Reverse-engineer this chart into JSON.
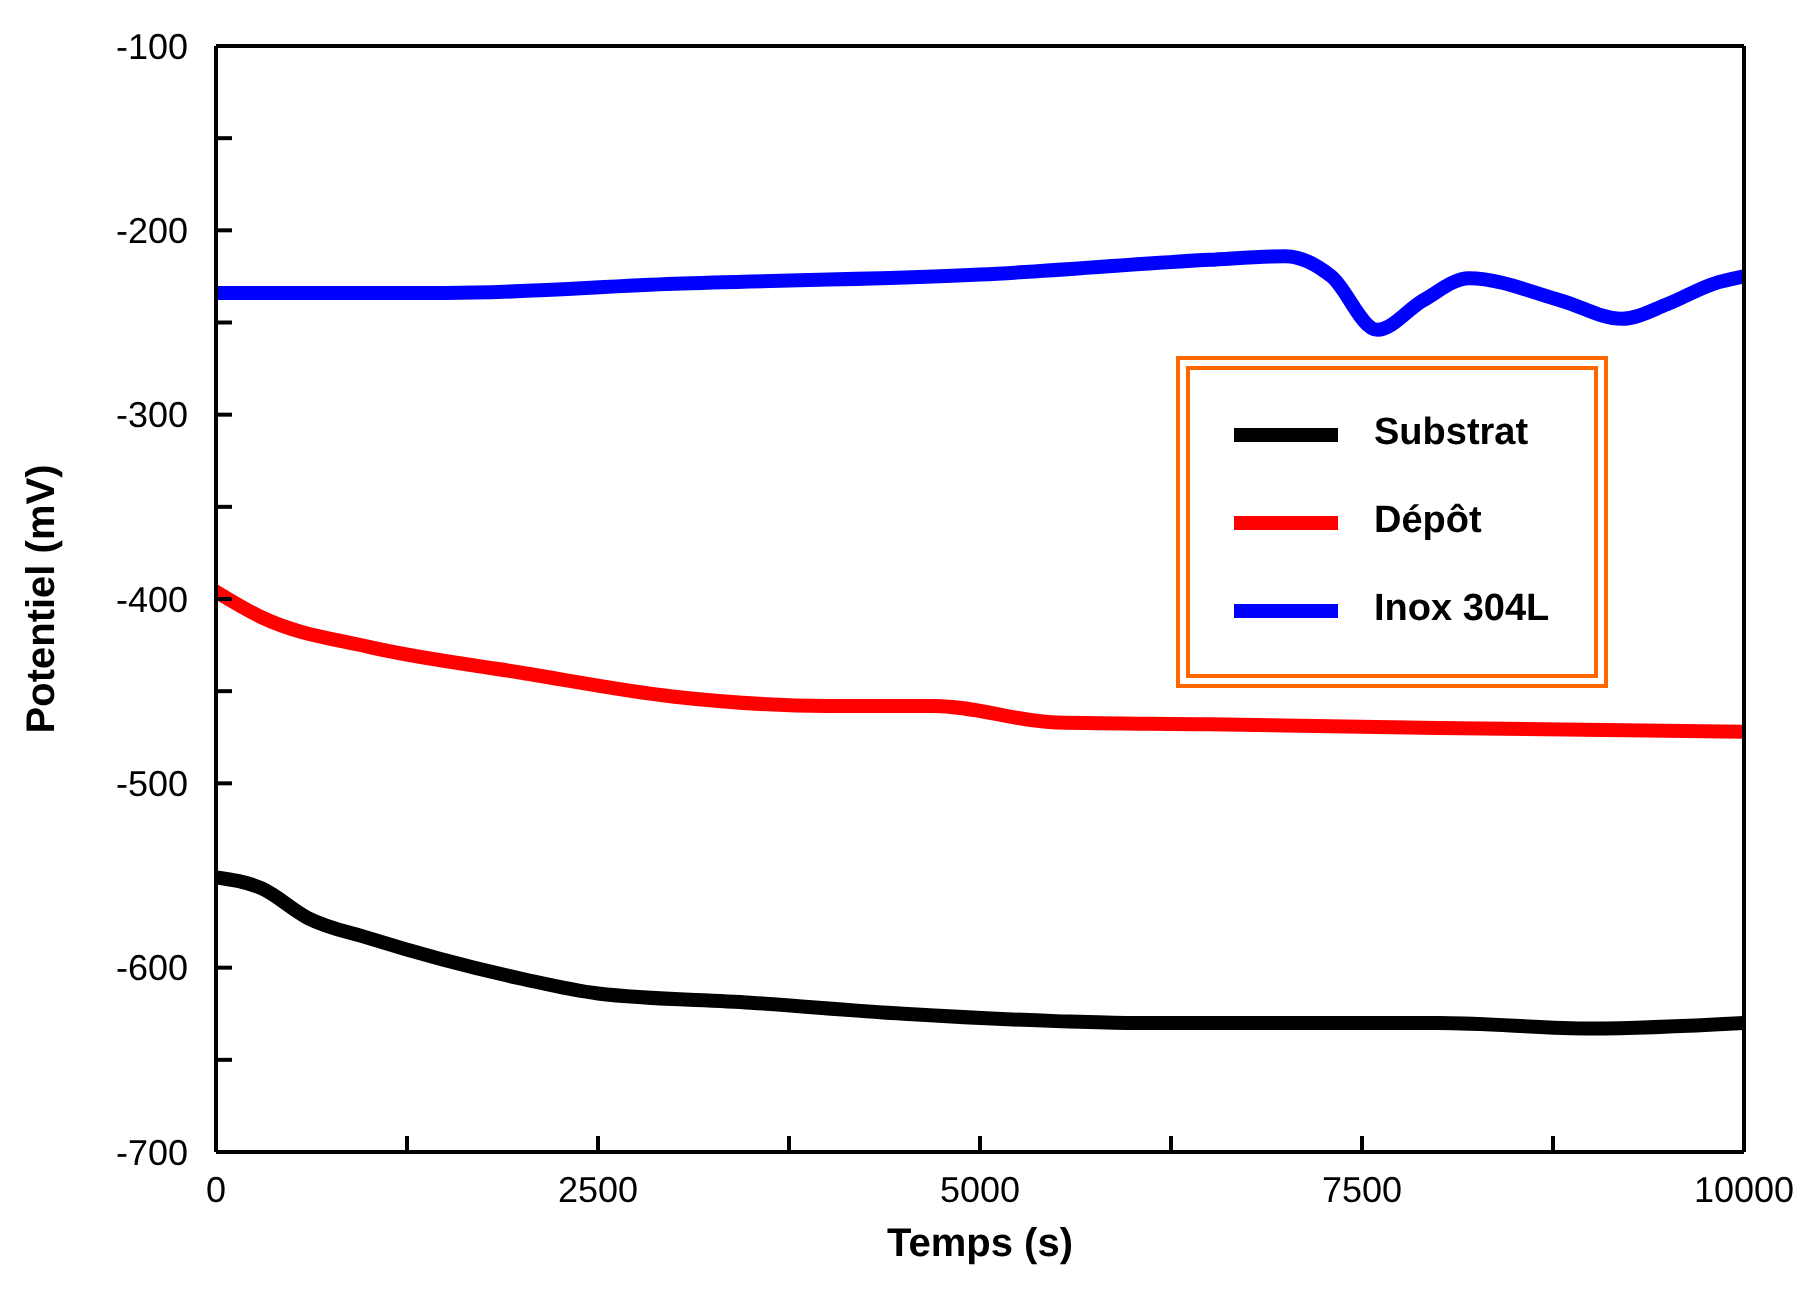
{
  "chart_data": {
    "type": "line",
    "xlabel": "Temps (s)",
    "ylabel": "Potentiel (mV)",
    "xlim": [
      0,
      10000
    ],
    "xticks": [
      0,
      {
        "value": 1250,
        "label": null
      },
      2500,
      {
        "value": 3750,
        "label": null
      },
      5000,
      {
        "value": 6250,
        "label": null
      },
      7500,
      {
        "value": 8750,
        "label": null
      },
      10000
    ],
    "ylim": [
      -700,
      -100
    ],
    "yticks": [
      -700,
      {
        "value": -650,
        "label": null
      },
      -600,
      {
        "value": -550,
        "label": null
      },
      -500,
      {
        "value": -450,
        "label": null
      },
      -400,
      {
        "value": -350,
        "label": null
      },
      -300,
      {
        "value": -250,
        "label": null
      },
      -200,
      {
        "value": -150,
        "label": null
      },
      -100
    ],
    "grid": false,
    "legend": "right",
    "marker": "none",
    "line_style": "solid",
    "series": [
      {
        "name": "Substrat",
        "color": "#000000",
        "x": [
          0,
          300,
          600,
          1000,
          2000,
          2500,
          3500,
          4500,
          5500,
          6000,
          7000,
          8000,
          9000,
          10000
        ],
        "values": [
          -551,
          -557,
          -573,
          -584,
          -606,
          -614,
          -619,
          -625,
          -629,
          -630,
          -630,
          -630,
          -633,
          -630
        ]
      },
      {
        "name": "Dépôt",
        "color": "#ff0000",
        "x": [
          0,
          300,
          1000,
          2000,
          3000,
          4000,
          4700,
          5500,
          6500,
          8000,
          10000
        ],
        "values": [
          -396,
          -410,
          -426,
          -440,
          -453,
          -458,
          -458,
          -467,
          -468,
          -470,
          -472
        ]
      },
      {
        "name": "Inox 304L",
        "color": "#0000ff",
        "x": [
          0,
          1500,
          3000,
          5000,
          6500,
          7000,
          7300,
          7600,
          7900,
          8200,
          8800,
          9200,
          9500,
          9800,
          10000
        ],
        "values": [
          -234,
          -234,
          -229,
          -224,
          -216,
          -214,
          -225,
          -254,
          -238,
          -226,
          -238,
          -248,
          -240,
          -229,
          -225
        ]
      }
    ]
  }
}
